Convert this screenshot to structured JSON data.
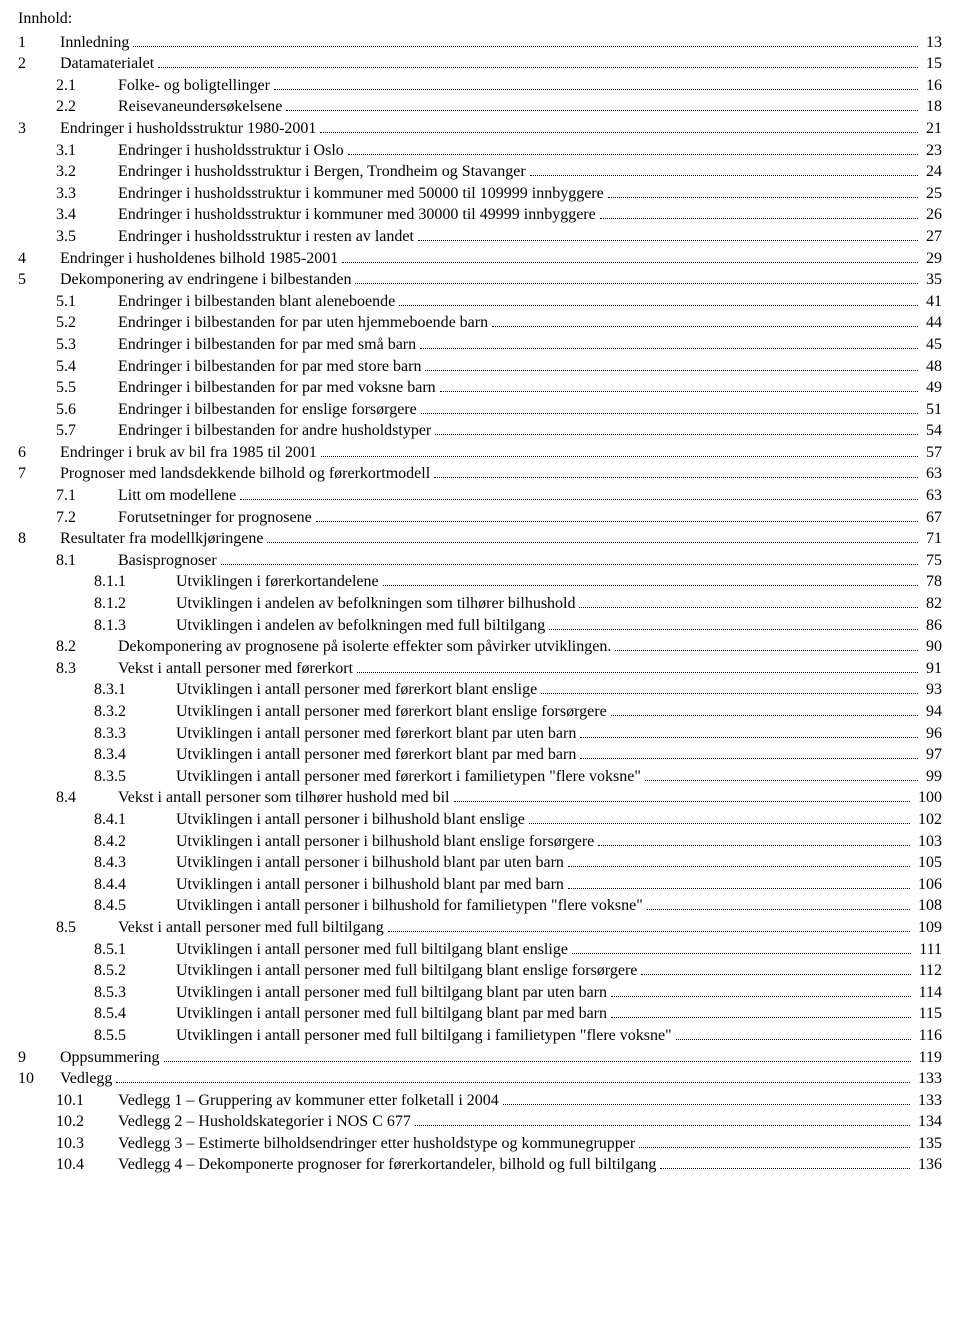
{
  "title": "Innhold:",
  "font_family": "Times New Roman",
  "base_fontsize_pt": 12,
  "text_color": "#000000",
  "background_color": "#ffffff",
  "dot_leader_color": "#000000",
  "entries": [
    {
      "level": 1,
      "num": "1",
      "label": "Innledning",
      "page": "13"
    },
    {
      "level": 1,
      "num": "2",
      "label": "Datamaterialet",
      "page": "15"
    },
    {
      "level": 2,
      "num": "2.1",
      "label": "Folke- og boligtellinger",
      "page": "16"
    },
    {
      "level": 2,
      "num": "2.2",
      "label": "Reisevaneundersøkelsene",
      "page": "18"
    },
    {
      "level": 1,
      "num": "3",
      "label": "Endringer i husholdsstruktur 1980-2001",
      "page": "21"
    },
    {
      "level": 2,
      "num": "3.1",
      "label": "Endringer i husholdsstruktur i Oslo",
      "page": "23"
    },
    {
      "level": 2,
      "num": "3.2",
      "label": "Endringer i husholdsstruktur i Bergen, Trondheim og Stavanger",
      "page": "24"
    },
    {
      "level": 2,
      "num": "3.3",
      "label": "Endringer i husholdsstruktur i kommuner med 50000 til 109999 innbyggere",
      "page": "25"
    },
    {
      "level": 2,
      "num": "3.4",
      "label": "Endringer i husholdsstruktur i kommuner med 30000 til 49999 innbyggere",
      "page": "26"
    },
    {
      "level": 2,
      "num": "3.5",
      "label": "Endringer i husholdsstruktur i resten av landet",
      "page": "27"
    },
    {
      "level": 1,
      "num": "4",
      "label": "Endringer i husholdenes bilhold 1985-2001",
      "page": "29"
    },
    {
      "level": 1,
      "num": "5",
      "label": "Dekomponering av endringene i bilbestanden",
      "page": "35"
    },
    {
      "level": 2,
      "num": "5.1",
      "label": "Endringer i bilbestanden blant aleneboende",
      "page": "41"
    },
    {
      "level": 2,
      "num": "5.2",
      "label": "Endringer i bilbestanden for par uten hjemmeboende barn",
      "page": "44"
    },
    {
      "level": 2,
      "num": "5.3",
      "label": "Endringer i bilbestanden for par med små barn",
      "page": "45"
    },
    {
      "level": 2,
      "num": "5.4",
      "label": "Endringer i bilbestanden for par med store barn",
      "page": "48"
    },
    {
      "level": 2,
      "num": "5.5",
      "label": "Endringer i bilbestanden for par med voksne barn",
      "page": "49"
    },
    {
      "level": 2,
      "num": "5.6",
      "label": "Endringer i bilbestanden for enslige forsørgere",
      "page": "51"
    },
    {
      "level": 2,
      "num": "5.7",
      "label": "Endringer i bilbestanden for andre husholdstyper",
      "page": "54"
    },
    {
      "level": 1,
      "num": "6",
      "label": "Endringer i bruk av bil fra 1985 til 2001",
      "page": "57"
    },
    {
      "level": 1,
      "num": "7",
      "label": "Prognoser med landsdekkende bilhold og førerkortmodell",
      "page": "63"
    },
    {
      "level": 2,
      "num": "7.1",
      "label": "Litt om modellene",
      "page": "63"
    },
    {
      "level": 2,
      "num": "7.2",
      "label": "Forutsetninger for prognosene",
      "page": "67"
    },
    {
      "level": 1,
      "num": "8",
      "label": "Resultater fra modellkjøringene",
      "page": "71"
    },
    {
      "level": 2,
      "num": "8.1",
      "label": "Basisprognoser",
      "page": "75"
    },
    {
      "level": 3,
      "num": "8.1.1",
      "label": "Utviklingen i førerkortandelene",
      "page": "78"
    },
    {
      "level": 3,
      "num": "8.1.2",
      "label": "Utviklingen i andelen av befolkningen som tilhører bilhushold",
      "page": "82"
    },
    {
      "level": 3,
      "num": "8.1.3",
      "label": "Utviklingen i andelen av befolkningen med full biltilgang",
      "page": "86"
    },
    {
      "level": 2,
      "num": "8.2",
      "label": "Dekomponering av prognosene på isolerte effekter som påvirker utviklingen.",
      "page": "90"
    },
    {
      "level": 2,
      "num": "8.3",
      "label": "Vekst i antall personer med førerkort",
      "page": "91"
    },
    {
      "level": 3,
      "num": "8.3.1",
      "label": "Utviklingen i antall personer med førerkort blant enslige",
      "page": "93"
    },
    {
      "level": 3,
      "num": "8.3.2",
      "label": "Utviklingen i antall personer med førerkort blant enslige forsørgere",
      "page": "94"
    },
    {
      "level": 3,
      "num": "8.3.3",
      "label": "Utviklingen i antall personer med førerkort blant par uten barn",
      "page": "96"
    },
    {
      "level": 3,
      "num": "8.3.4",
      "label": "Utviklingen i antall personer med førerkort blant par med barn",
      "page": "97"
    },
    {
      "level": 3,
      "num": "8.3.5",
      "label": "Utviklingen i antall personer med førerkort i familietypen \"flere voksne\"",
      "page": "99"
    },
    {
      "level": 2,
      "num": "8.4",
      "label": "Vekst i antall personer som tilhører hushold med bil",
      "page": "100"
    },
    {
      "level": 3,
      "num": "8.4.1",
      "label": "Utviklingen i antall personer i bilhushold blant enslige",
      "page": "102"
    },
    {
      "level": 3,
      "num": "8.4.2",
      "label": "Utviklingen i antall personer i bilhushold blant enslige forsørgere",
      "page": "103"
    },
    {
      "level": 3,
      "num": "8.4.3",
      "label": "Utviklingen i antall personer i bilhushold blant par uten barn",
      "page": "105"
    },
    {
      "level": 3,
      "num": "8.4.4",
      "label": "Utviklingen i antall personer i bilhushold blant par med barn",
      "page": "106"
    },
    {
      "level": 3,
      "num": "8.4.5",
      "label": "Utviklingen i antall personer i bilhushold for familietypen \"flere voksne\"",
      "page": "108"
    },
    {
      "level": 2,
      "num": "8.5",
      "label": "Vekst i antall personer med full biltilgang",
      "page": "109"
    },
    {
      "level": 3,
      "num": "8.5.1",
      "label": "Utviklingen i antall personer med full biltilgang blant enslige",
      "page": "111"
    },
    {
      "level": 3,
      "num": "8.5.2",
      "label": "Utviklingen i antall personer med full biltilgang blant enslige forsørgere",
      "page": "112"
    },
    {
      "level": 3,
      "num": "8.5.3",
      "label": "Utviklingen i antall personer med full biltilgang blant par uten barn",
      "page": "114"
    },
    {
      "level": 3,
      "num": "8.5.4",
      "label": "Utviklingen i antall personer med full biltilgang blant par med barn",
      "page": "115"
    },
    {
      "level": 3,
      "num": "8.5.5",
      "label": "Utviklingen i antall personer med full biltilgang i familietypen \"flere voksne\"",
      "page": "116"
    },
    {
      "level": 1,
      "num": "9",
      "label": "Oppsummering",
      "page": "119"
    },
    {
      "level": 1,
      "num": "10",
      "label": "Vedlegg",
      "page": "133"
    },
    {
      "level": 2,
      "num": "10.1",
      "label": "Vedlegg 1 – Gruppering av kommuner etter folketall i 2004",
      "page": "133"
    },
    {
      "level": 2,
      "num": "10.2",
      "label": "Vedlegg 2 – Husholdskategorier i NOS C 677",
      "page": "134"
    },
    {
      "level": 2,
      "num": "10.3",
      "label": "Vedlegg 3 – Estimerte bilholdsendringer etter husholdstype og kommunegrupper",
      "page": "135"
    },
    {
      "level": 2,
      "num": "10.4",
      "label": "Vedlegg 4 – Dekomponerte prognoser for førerkortandeler, bilhold og full biltilgang",
      "page": "136"
    }
  ]
}
